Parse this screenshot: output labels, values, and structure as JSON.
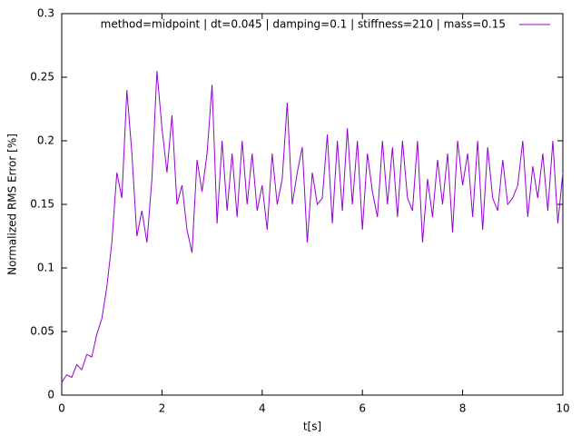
{
  "chart_data": {
    "type": "line",
    "xlabel": "t[s]",
    "ylabel": "Normalized RMS Error [%]",
    "x": [
      0,
      0.1,
      0.2,
      0.3,
      0.4,
      0.5,
      0.6,
      0.7,
      0.8,
      0.9,
      1,
      1.1,
      1.2,
      1.3,
      1.4,
      1.5,
      1.6,
      1.7,
      1.8,
      1.9,
      2,
      2.1,
      2.2,
      2.3,
      2.4,
      2.5,
      2.6,
      2.7,
      2.8,
      2.9,
      3,
      3.1,
      3.2,
      3.3,
      3.4,
      3.5,
      3.6,
      3.7,
      3.8,
      3.9,
      4,
      4.1,
      4.2,
      4.3,
      4.4,
      4.5,
      4.6,
      4.7,
      4.8,
      4.9,
      5,
      5.1,
      5.2,
      5.3,
      5.4,
      5.5,
      5.6,
      5.7,
      5.8,
      5.9,
      6,
      6.1,
      6.2,
      6.3,
      6.4,
      6.5,
      6.6,
      6.7,
      6.8,
      6.9,
      7,
      7.1,
      7.2,
      7.3,
      7.4,
      7.5,
      7.6,
      7.7,
      7.8,
      7.9,
      8,
      8.1,
      8.2,
      8.3,
      8.4,
      8.5,
      8.6,
      8.7,
      8.8,
      8.9,
      9,
      9.1,
      9.2,
      9.3,
      9.4,
      9.5,
      9.6,
      9.7,
      9.8,
      9.9,
      10
    ],
    "series": [
      {
        "name": "method=midpoint | dt=0.045 | damping=0.1 | stiffness=210 | mass=0.15",
        "color": "#9400d3",
        "values": [
          0.01,
          0.016,
          0.014,
          0.024,
          0.02,
          0.032,
          0.03,
          0.048,
          0.06,
          0.085,
          0.12,
          0.175,
          0.155,
          0.24,
          0.19,
          0.125,
          0.145,
          0.12,
          0.17,
          0.255,
          0.21,
          0.175,
          0.22,
          0.15,
          0.165,
          0.13,
          0.112,
          0.185,
          0.16,
          0.19,
          0.244,
          0.135,
          0.2,
          0.145,
          0.19,
          0.14,
          0.2,
          0.15,
          0.19,
          0.145,
          0.165,
          0.13,
          0.19,
          0.15,
          0.17,
          0.23,
          0.15,
          0.175,
          0.195,
          0.12,
          0.175,
          0.15,
          0.155,
          0.205,
          0.135,
          0.2,
          0.145,
          0.21,
          0.15,
          0.2,
          0.13,
          0.19,
          0.16,
          0.14,
          0.2,
          0.15,
          0.195,
          0.14,
          0.2,
          0.155,
          0.145,
          0.2,
          0.12,
          0.17,
          0.14,
          0.185,
          0.15,
          0.19,
          0.128,
          0.2,
          0.165,
          0.19,
          0.14,
          0.2,
          0.13,
          0.195,
          0.155,
          0.145,
          0.185,
          0.15,
          0.155,
          0.165,
          0.2,
          0.14,
          0.18,
          0.155,
          0.19,
          0.145,
          0.2,
          0.135,
          0.175
        ]
      }
    ],
    "xlim": [
      0,
      10
    ],
    "xticks": [
      0,
      2,
      4,
      6,
      8,
      10
    ],
    "ylim": [
      0,
      0.3
    ],
    "yticks": [
      0,
      0.05,
      0.1,
      0.15,
      0.2,
      0.25,
      0.3
    ],
    "grid": false,
    "legend": "top-right"
  }
}
